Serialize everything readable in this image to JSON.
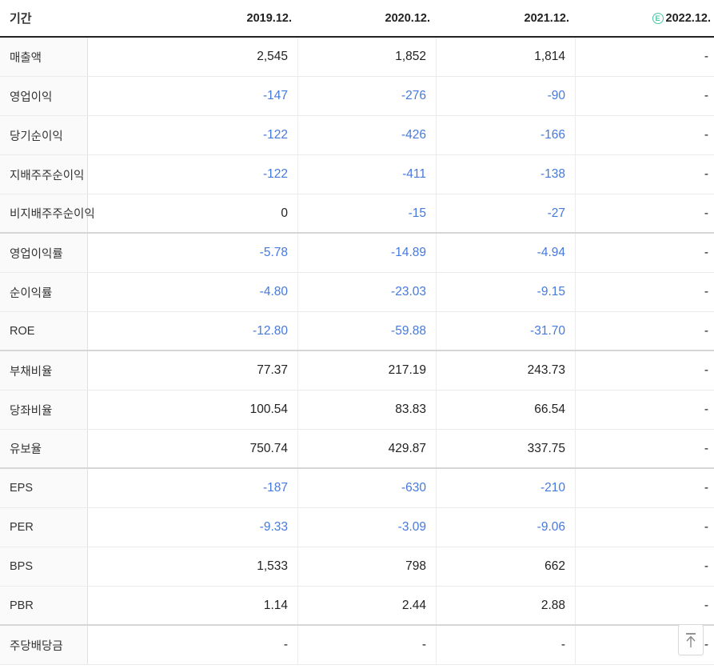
{
  "table": {
    "header": {
      "period_label": "기간",
      "columns": [
        "2019.12.",
        "2020.12.",
        "2021.12.",
        "2022.12."
      ],
      "estimate_badge": "E"
    },
    "rows": [
      {
        "label": "매출액",
        "values": [
          "2,545",
          "1,852",
          "1,814",
          "-"
        ],
        "section_end": false
      },
      {
        "label": "영업이익",
        "values": [
          "-147",
          "-276",
          "-90",
          "-"
        ],
        "section_end": false
      },
      {
        "label": "당기순이익",
        "values": [
          "-122",
          "-426",
          "-166",
          "-"
        ],
        "section_end": false
      },
      {
        "label": "지배주주순이익",
        "values": [
          "-122",
          "-411",
          "-138",
          "-"
        ],
        "section_end": false
      },
      {
        "label": "비지배주주순이익",
        "values": [
          "0",
          "-15",
          "-27",
          "-"
        ],
        "section_end": true
      },
      {
        "label": "영업이익률",
        "values": [
          "-5.78",
          "-14.89",
          "-4.94",
          "-"
        ],
        "section_end": false
      },
      {
        "label": "순이익률",
        "values": [
          "-4.80",
          "-23.03",
          "-9.15",
          "-"
        ],
        "section_end": false
      },
      {
        "label": "ROE",
        "values": [
          "-12.80",
          "-59.88",
          "-31.70",
          "-"
        ],
        "section_end": true
      },
      {
        "label": "부채비율",
        "values": [
          "77.37",
          "217.19",
          "243.73",
          "-"
        ],
        "section_end": false
      },
      {
        "label": "당좌비율",
        "values": [
          "100.54",
          "83.83",
          "66.54",
          "-"
        ],
        "section_end": false
      },
      {
        "label": "유보율",
        "values": [
          "750.74",
          "429.87",
          "337.75",
          "-"
        ],
        "section_end": true
      },
      {
        "label": "EPS",
        "values": [
          "-187",
          "-630",
          "-210",
          "-"
        ],
        "section_end": false
      },
      {
        "label": "PER",
        "values": [
          "-9.33",
          "-3.09",
          "-9.06",
          "-"
        ],
        "section_end": false
      },
      {
        "label": "BPS",
        "values": [
          "1,533",
          "798",
          "662",
          "-"
        ],
        "section_end": false
      },
      {
        "label": "PBR",
        "values": [
          "1.14",
          "2.44",
          "2.88",
          "-"
        ],
        "section_end": true
      },
      {
        "label": "주당배당금",
        "values": [
          "-",
          "-",
          "-",
          "-"
        ],
        "section_end": false
      }
    ]
  },
  "colors": {
    "negative_value": "#4679de",
    "positive_value": "#222222",
    "estimate_badge": "#4cc6a6",
    "header_border": "#222222"
  },
  "scroll_top_button": {
    "icon": "arrow-up-to-top"
  }
}
